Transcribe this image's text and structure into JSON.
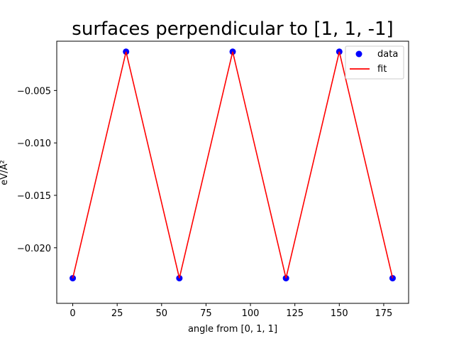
{
  "chart_data": {
    "type": "line",
    "title": "surfaces perpendicular to [1, 1, -1]",
    "xlabel": "angle from [0, 1, 1]",
    "ylabel": "eV/Å²",
    "xlim": [
      -9,
      189
    ],
    "ylim": [
      -0.0253,
      -0.0003
    ],
    "xticks": [
      0,
      25,
      50,
      75,
      100,
      125,
      150,
      175
    ],
    "yticks": [
      -0.005,
      -0.01,
      -0.015,
      -0.02
    ],
    "yticklabels": [
      "−0.005",
      "−0.010",
      "−0.015",
      "−0.020"
    ],
    "grid": false,
    "legend_position": "upper right",
    "series": [
      {
        "name": "data",
        "style": "scatter",
        "color": "#0000ff",
        "x": [
          0,
          30,
          60,
          90,
          120,
          150,
          180
        ],
        "y": [
          -0.0229,
          -0.0013,
          -0.0229,
          -0.0013,
          -0.0229,
          -0.0013,
          -0.0229
        ]
      },
      {
        "name": "fit",
        "style": "line",
        "color": "#ff0000",
        "x": [
          0,
          30,
          60,
          90,
          120,
          150,
          180
        ],
        "y": [
          -0.0229,
          -0.0013,
          -0.0229,
          -0.0013,
          -0.0229,
          -0.0013,
          -0.0229
        ]
      }
    ]
  }
}
